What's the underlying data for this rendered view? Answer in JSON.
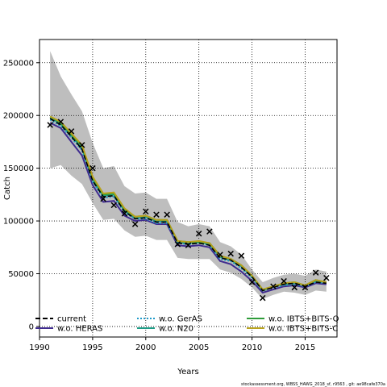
{
  "chart_data": {
    "type": "line",
    "xlabel": "Years",
    "ylabel": "Catch",
    "xlim": [
      1990,
      2018
    ],
    "ylim": [
      -10000,
      272000
    ],
    "xticks": [
      1990,
      1995,
      2000,
      2005,
      2010,
      2015
    ],
    "yticks": [
      0,
      50000,
      100000,
      150000,
      200000,
      250000
    ],
    "grid": true,
    "legend_position": "bottom",
    "band": {
      "x": [
        1991,
        1992,
        1993,
        1994,
        1995,
        1996,
        1997,
        1998,
        1999,
        2000,
        2001,
        2002,
        2003,
        2004,
        2005,
        2006,
        2007,
        2008,
        2009,
        2010,
        2011,
        2012,
        2013,
        2014,
        2015,
        2016,
        2017
      ],
      "lower": [
        150000,
        153000,
        143000,
        135000,
        117000,
        101000,
        102000,
        91000,
        85000,
        86000,
        82000,
        82000,
        65000,
        64000,
        64000,
        64000,
        54000,
        51000,
        45000,
        37000,
        26000,
        30000,
        33000,
        32000,
        30000,
        34000,
        33000
      ],
      "upper": [
        261000,
        237000,
        220000,
        204000,
        174000,
        150000,
        152000,
        133000,
        126000,
        127000,
        121000,
        121000,
        99000,
        95000,
        97000,
        95000,
        80000,
        76000,
        68000,
        54000,
        42000,
        46000,
        49000,
        50000,
        48000,
        54000,
        52000
      ]
    },
    "series": [
      {
        "name": "current",
        "color": "#000000",
        "dash": "6,3",
        "values": [
          197000,
          191000,
          180000,
          168000,
          138000,
          123000,
          124000,
          109000,
          102000,
          103000,
          99000,
          99000,
          79000,
          78000,
          79000,
          77000,
          65000,
          63000,
          56000,
          47000,
          34000,
          37000,
          40000,
          41000,
          38000,
          42000,
          41000
        ]
      },
      {
        "name": "w.o. HERAS",
        "color": "#3f2b8f",
        "dash": "",
        "values": [
          193000,
          188000,
          175000,
          162000,
          134000,
          118000,
          119000,
          105000,
          100000,
          101000,
          97000,
          97000,
          77000,
          76000,
          77000,
          75000,
          62000,
          59000,
          52000,
          43000,
          32000,
          35000,
          38000,
          39000,
          37000,
          41000,
          40000
        ]
      },
      {
        "name": "w.o. GerAS",
        "color": "#1f9ac9",
        "dash": "2,2",
        "values": [
          196000,
          190000,
          179000,
          167000,
          137000,
          122000,
          123000,
          108000,
          102000,
          102000,
          98000,
          98000,
          79000,
          78000,
          79000,
          77000,
          64000,
          62000,
          55000,
          46000,
          34000,
          37000,
          39000,
          40000,
          38000,
          42000,
          41000
        ]
      },
      {
        "name": "w.o. N20",
        "color": "#1d9c86",
        "dash": "",
        "values": [
          198000,
          192000,
          181000,
          169000,
          140000,
          124000,
          125000,
          110000,
          103000,
          104000,
          100000,
          100000,
          80000,
          79000,
          80000,
          78000,
          66000,
          63000,
          57000,
          47000,
          34000,
          38000,
          40000,
          41000,
          39000,
          43000,
          42000
        ]
      },
      {
        "name": "w.o. IBTS+BITS-Q",
        "color": "#2e9c3a",
        "dash": "",
        "values": [
          199000,
          193000,
          182000,
          171000,
          141000,
          125000,
          126000,
          111000,
          104000,
          105000,
          101000,
          101000,
          81000,
          80000,
          80000,
          79000,
          67000,
          64000,
          58000,
          48000,
          35000,
          38000,
          41000,
          42000,
          39000,
          44000,
          42000
        ]
      },
      {
        "name": "w.o. IBTS+BITS-C",
        "color": "#b8a21c",
        "dash": "",
        "values": [
          199000,
          194000,
          183000,
          172000,
          142000,
          126000,
          127000,
          112000,
          104000,
          105000,
          101000,
          101000,
          81000,
          80000,
          81000,
          79000,
          67000,
          64000,
          58000,
          48000,
          35000,
          38000,
          41000,
          42000,
          39000,
          44000,
          42000
        ]
      }
    ],
    "observed": {
      "marker": "x",
      "x": [
        1991,
        1992,
        1993,
        1994,
        1995,
        1996,
        1997,
        1998,
        1999,
        2000,
        2001,
        2002,
        2003,
        2004,
        2005,
        2006,
        2007,
        2008,
        2009,
        2010,
        2011,
        2012,
        2013,
        2014,
        2015,
        2016,
        2017
      ],
      "y": [
        191000,
        194000,
        185000,
        172000,
        150000,
        121000,
        115000,
        107000,
        97000,
        109000,
        106000,
        106000,
        78000,
        77000,
        88000,
        90000,
        68000,
        69000,
        67000,
        42000,
        27000,
        38000,
        43000,
        37000,
        37000,
        51000,
        46000
      ]
    },
    "legend_labels": [
      "current",
      "w.o. HERAS",
      "w.o. GerAS",
      "w.o. N20",
      "w.o. IBTS+BITS-Q",
      "w.o. IBTS+BITS-C"
    ],
    "footer": "stockassessment.org, WBSS_HAWG_2018_sf, r9563 , git: ae98cafe370a"
  }
}
